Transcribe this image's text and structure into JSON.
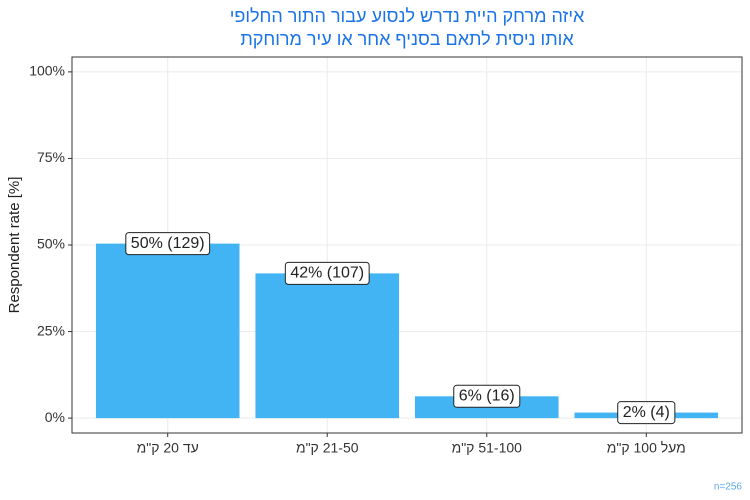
{
  "chart_data": {
    "type": "bar",
    "title": [
      "איזה מרחק היית נדרש לנסוע עבור התור החלופי",
      "אותו ניסית לתאם בסניף אחר או עיר מרוחקת"
    ],
    "y_label": "Respondent rate [%]",
    "note": "n=256",
    "categories": [
      "עד 20 ק\"מ",
      "21-50 ק\"מ",
      "51-100 ק\"מ",
      "מעל 100 ק\"מ"
    ],
    "values": [
      50.4,
      41.8,
      6.3,
      1.6
    ],
    "value_labels": [
      "50% (129)",
      "42% (107)",
      "6% (16)",
      "2% (4)"
    ],
    "color": "#42b4f4",
    "ylim": [
      -4.3,
      104.3
    ],
    "yticks": [
      {
        "value": 0,
        "label": "0%"
      },
      {
        "value": 25,
        "label": "25%"
      },
      {
        "value": 50,
        "label": "50%"
      },
      {
        "value": 75,
        "label": "75%"
      },
      {
        "value": 100,
        "label": "100%"
      }
    ],
    "grid": true
  }
}
